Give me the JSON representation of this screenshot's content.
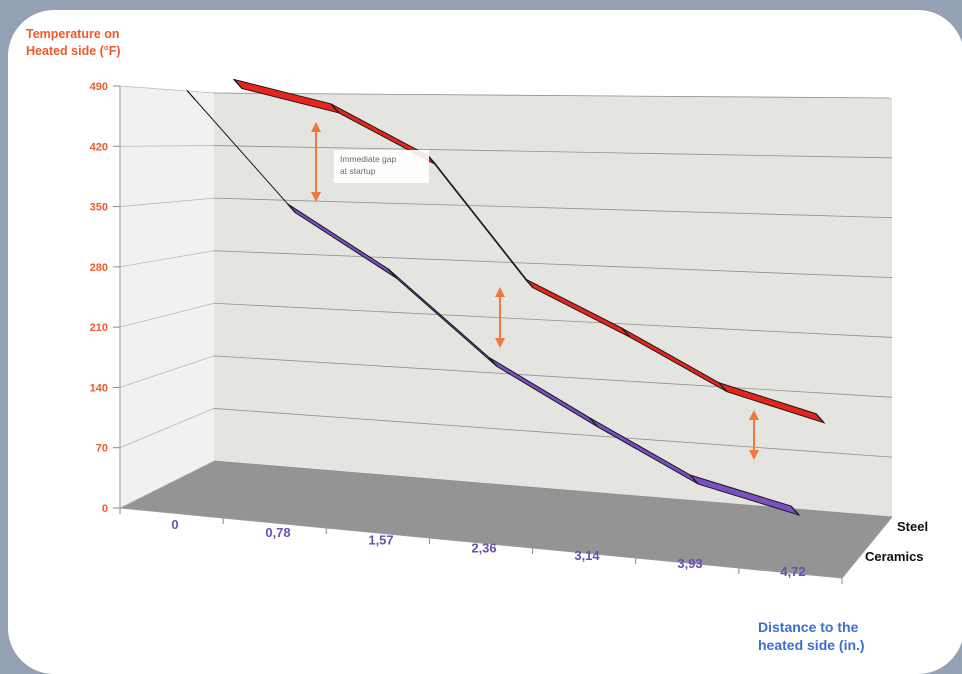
{
  "chart_data": {
    "type": "line",
    "title": "",
    "ylabel_lines": [
      "Temperature on",
      "Heated side (°F)"
    ],
    "xlabel_lines": [
      "Distance to the",
      "heated side (in.)"
    ],
    "categories": [
      "0",
      "0,78",
      "1,57",
      "2,36",
      "3,14",
      "3,93",
      "4,72"
    ],
    "y_ticks": [
      "0",
      "70",
      "140",
      "210",
      "280",
      "350",
      "420",
      "490"
    ],
    "ylim": [
      0,
      490
    ],
    "series": [
      {
        "name": "Steel",
        "color": "#e8231c",
        "values": [
          490,
          462,
          400,
          250,
          195,
          135,
          105
        ]
      },
      {
        "name": "Ceramics",
        "color": "#7a4fc4",
        "values": [
          490,
          350,
          275,
          175,
          112,
          55,
          30
        ]
      }
    ],
    "annotations": [
      {
        "text_lines": [
          "Immediate gap",
          "at startup"
        ]
      }
    ],
    "grid": true,
    "style": "3d"
  }
}
